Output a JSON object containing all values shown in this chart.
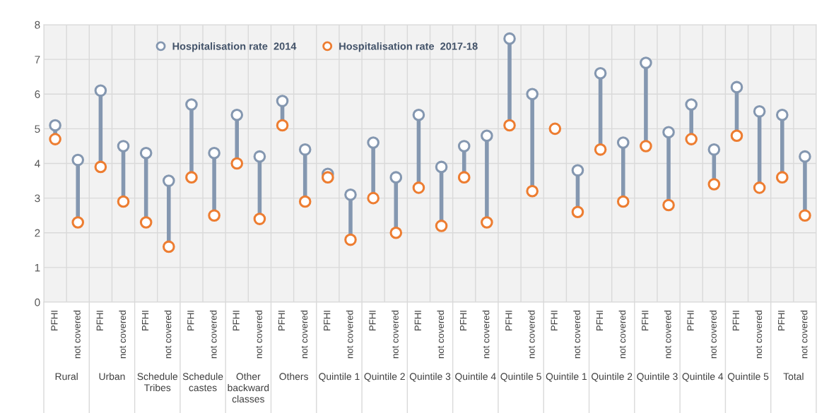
{
  "chart_data": {
    "type": "scatter",
    "categories": [
      "PFHI",
      "not covered",
      "PFHI",
      "not covered",
      "PFHI",
      "not covered",
      "PFHI",
      "not covered",
      "PFHI",
      "not covered",
      "PFHI",
      "not covered",
      "PFHI",
      "not covered",
      "PFHI",
      "not covered",
      "PFHI",
      "not covered",
      "PFHI",
      "not covered",
      "PFHI",
      "not covered",
      "PFHI",
      "not covered",
      "PFHI",
      "not covered",
      "PFHI",
      "not covered",
      "PFHI",
      "not covered",
      "PFHI",
      "not covered",
      "PFHI",
      "not covered"
    ],
    "series": [
      {
        "name": "Hospitalisation rate  2014",
        "color": "#8497b0",
        "values": [
          5.1,
          4.1,
          6.1,
          4.5,
          4.3,
          3.5,
          5.7,
          4.3,
          5.4,
          4.2,
          5.8,
          4.4,
          3.7,
          3.1,
          4.6,
          3.6,
          5.4,
          3.9,
          4.5,
          4.8,
          7.6,
          6.0,
          null,
          3.8,
          6.6,
          4.6,
          6.9,
          4.9,
          5.7,
          4.4,
          6.2,
          5.5,
          5.4,
          4.2
        ]
      },
      {
        "name": "Hospitalisation rate  2017-18",
        "color": "#ed7d31",
        "values": [
          4.7,
          2.3,
          3.9,
          2.9,
          2.3,
          1.6,
          3.6,
          2.5,
          4.0,
          2.4,
          5.1,
          2.9,
          3.6,
          1.8,
          3.0,
          2.0,
          3.3,
          2.2,
          3.6,
          2.3,
          5.1,
          3.2,
          5.0,
          2.6,
          4.4,
          2.9,
          4.5,
          2.8,
          4.7,
          3.4,
          4.8,
          3.3,
          3.6,
          2.5
        ]
      }
    ],
    "annotations": [
      "Rural",
      "Urban",
      "Schedule Tribes",
      "Schedule castes",
      "Other backward classes",
      "Others",
      "Quintile 1",
      "Quintile 2",
      "Quintile 3",
      "Quintile 4",
      "Quintile 5",
      "Quintile 1",
      "Quintile 2",
      "Quintile 3",
      "Quintile 4",
      "Quintile 5",
      "Total"
    ],
    "ylim": [
      0,
      8
    ],
    "yticks": [
      0,
      1,
      2,
      3,
      4,
      5,
      6,
      7,
      8
    ],
    "grid": true,
    "legend": "top",
    "marker": "circle"
  }
}
